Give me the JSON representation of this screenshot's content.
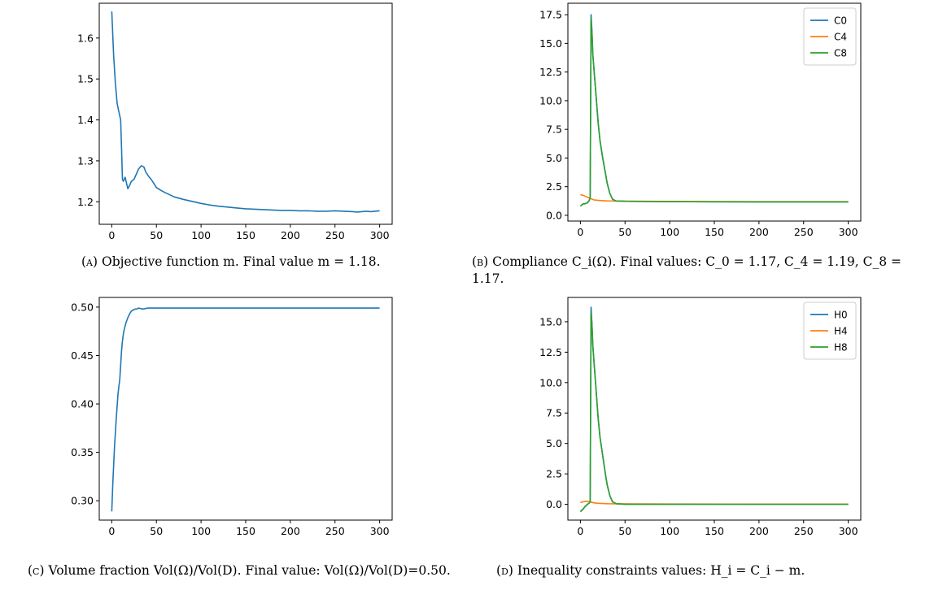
{
  "chart_data": [
    {
      "type": "line",
      "id": "a",
      "caption": {
        "tag": "(a)",
        "text": "Objective function m. Final value m = 1.18."
      },
      "xticks": [
        0,
        50,
        100,
        150,
        200,
        250,
        300
      ],
      "yticks": [
        "1.2",
        "1.3",
        "1.4",
        "1.5",
        "1.6"
      ],
      "xlim": [
        -14,
        314
      ],
      "ylim": [
        1.145,
        1.685
      ],
      "legend": null,
      "series": [
        {
          "color": "#1f77b4",
          "x": [
            0,
            2,
            4,
            6,
            8,
            10,
            11,
            12,
            13,
            15,
            18,
            20,
            22,
            25,
            28,
            30,
            33,
            36,
            38,
            41,
            44,
            47,
            50,
            55,
            60,
            65,
            70,
            80,
            90,
            100,
            110,
            120,
            130,
            140,
            150,
            160,
            170,
            180,
            190,
            200,
            210,
            220,
            230,
            240,
            250,
            260,
            270,
            275,
            280,
            285,
            290,
            295,
            300
          ],
          "y": [
            1.665,
            1.56,
            1.49,
            1.44,
            1.42,
            1.4,
            1.33,
            1.255,
            1.25,
            1.26,
            1.232,
            1.24,
            1.25,
            1.255,
            1.27,
            1.28,
            1.288,
            1.285,
            1.273,
            1.263,
            1.255,
            1.245,
            1.235,
            1.228,
            1.222,
            1.217,
            1.212,
            1.206,
            1.201,
            1.196,
            1.192,
            1.189,
            1.187,
            1.185,
            1.183,
            1.182,
            1.181,
            1.18,
            1.179,
            1.179,
            1.178,
            1.178,
            1.177,
            1.177,
            1.178,
            1.177,
            1.176,
            1.175,
            1.176,
            1.177,
            1.176,
            1.177,
            1.178
          ]
        }
      ]
    },
    {
      "type": "line",
      "id": "b",
      "caption": {
        "tag": "(b)",
        "text": "Compliance C_i(Ω). Final values: C_0 = 1.17, C_4 = 1.19, C_8 = 1.17."
      },
      "xticks": [
        0,
        50,
        100,
        150,
        200,
        250,
        300
      ],
      "yticks": [
        "0.0",
        "2.5",
        "5.0",
        "7.5",
        "10.0",
        "12.5",
        "15.0",
        "17.5"
      ],
      "xlim": [
        -14,
        314
      ],
      "ylim": [
        -0.5,
        18.5
      ],
      "legend": {
        "placement": "top-right",
        "entries": [
          "C0",
          "C4",
          "C8"
        ]
      },
      "series": [
        {
          "name": "C0",
          "color": "#1f77b4",
          "x": [
            0,
            3,
            5,
            8,
            10,
            11,
            12,
            13,
            14,
            16,
            18,
            20,
            22,
            25,
            28,
            30,
            33,
            36,
            40,
            50,
            80,
            150,
            200,
            300
          ],
          "y": [
            0.8,
            1.0,
            1.0,
            1.1,
            1.3,
            1.6,
            17.5,
            16.0,
            14.0,
            12.0,
            10.0,
            8.0,
            6.5,
            5.0,
            3.7,
            2.8,
            1.9,
            1.4,
            1.25,
            1.22,
            1.2,
            1.18,
            1.17,
            1.17
          ]
        },
        {
          "name": "C4",
          "color": "#ff7f0e",
          "x": [
            0,
            3,
            6,
            9,
            12,
            15,
            20,
            25,
            30,
            40,
            60,
            100,
            150,
            200,
            300
          ],
          "y": [
            1.8,
            1.75,
            1.65,
            1.55,
            1.45,
            1.35,
            1.3,
            1.28,
            1.26,
            1.25,
            1.23,
            1.21,
            1.2,
            1.19,
            1.19
          ]
        },
        {
          "name": "C8",
          "color": "#2ca02c",
          "x": [
            0,
            3,
            5,
            8,
            10,
            11,
            12,
            13,
            14,
            16,
            18,
            20,
            22,
            25,
            28,
            30,
            33,
            36,
            40,
            50,
            80,
            150,
            200,
            300
          ],
          "y": [
            0.8,
            1.0,
            1.0,
            1.1,
            1.3,
            1.6,
            17.2,
            16.0,
            14.0,
            12.0,
            10.0,
            8.0,
            6.5,
            5.0,
            3.7,
            2.8,
            1.9,
            1.4,
            1.25,
            1.22,
            1.2,
            1.18,
            1.17,
            1.17
          ]
        }
      ]
    },
    {
      "type": "line",
      "id": "c",
      "caption": {
        "tag": "(c)",
        "text": "Volume fraction Vol(Ω)/Vol(D). Final value: Vol(Ω)/Vol(D)=0.50."
      },
      "xticks": [
        0,
        50,
        100,
        150,
        200,
        250,
        300
      ],
      "yticks": [
        "0.30",
        "0.35",
        "0.40",
        "0.45",
        "0.50"
      ],
      "xlim": [
        -14,
        314
      ],
      "ylim": [
        0.28,
        0.51
      ],
      "legend": null,
      "series": [
        {
          "color": "#1f77b4",
          "x": [
            0,
            1,
            2,
            3,
            4,
            5,
            6,
            7,
            8,
            9,
            10,
            11,
            12,
            13,
            14,
            16,
            18,
            20,
            22,
            24,
            26,
            28,
            30,
            35,
            40,
            50,
            60,
            80,
            100,
            150,
            200,
            250,
            300
          ],
          "y": [
            0.289,
            0.315,
            0.335,
            0.355,
            0.37,
            0.385,
            0.398,
            0.41,
            0.418,
            0.425,
            0.44,
            0.455,
            0.465,
            0.472,
            0.477,
            0.484,
            0.489,
            0.493,
            0.496,
            0.497,
            0.498,
            0.498,
            0.499,
            0.498,
            0.499,
            0.499,
            0.499,
            0.499,
            0.499,
            0.499,
            0.499,
            0.499,
            0.499
          ]
        }
      ]
    },
    {
      "type": "line",
      "id": "d",
      "caption": {
        "tag": "(d)",
        "text": "Inequality constraints values: H_i = C_i − m."
      },
      "xticks": [
        0,
        50,
        100,
        150,
        200,
        250,
        300
      ],
      "yticks": [
        "0.0",
        "2.5",
        "5.0",
        "7.5",
        "10.0",
        "12.5",
        "15.0"
      ],
      "xlim": [
        -14,
        314
      ],
      "ylim": [
        -1.3,
        17.0
      ],
      "legend": {
        "placement": "top-right",
        "entries": [
          "H0",
          "H4",
          "H8"
        ]
      },
      "series": [
        {
          "name": "H0",
          "color": "#1f77b4",
          "x": [
            0,
            3,
            5,
            8,
            10,
            11,
            12,
            13,
            14,
            16,
            18,
            20,
            22,
            25,
            28,
            30,
            33,
            36,
            40,
            50,
            100,
            200,
            300
          ],
          "y": [
            -0.6,
            -0.4,
            -0.2,
            0.0,
            0.1,
            0.2,
            16.2,
            14.8,
            13.0,
            11.0,
            9.0,
            7.0,
            5.5,
            4.0,
            2.5,
            1.6,
            0.7,
            0.2,
            0.05,
            0.0,
            0.0,
            0.0,
            0.0
          ]
        },
        {
          "name": "H4",
          "color": "#ff7f0e",
          "x": [
            0,
            3,
            6,
            9,
            12,
            15,
            20,
            30,
            40,
            60,
            100,
            200,
            300
          ],
          "y": [
            0.15,
            0.2,
            0.25,
            0.22,
            0.18,
            0.12,
            0.08,
            0.05,
            0.04,
            0.03,
            0.02,
            0.01,
            0.01
          ]
        },
        {
          "name": "H8",
          "color": "#2ca02c",
          "x": [
            0,
            3,
            5,
            8,
            10,
            11,
            12,
            13,
            14,
            16,
            18,
            20,
            22,
            25,
            28,
            30,
            33,
            36,
            40,
            50,
            100,
            200,
            300
          ],
          "y": [
            -0.6,
            -0.4,
            -0.2,
            0.0,
            0.1,
            0.2,
            15.8,
            14.8,
            13.0,
            11.0,
            9.0,
            7.0,
            5.5,
            4.0,
            2.5,
            1.6,
            0.7,
            0.2,
            0.05,
            0.0,
            0.0,
            0.0,
            0.0
          ]
        }
      ]
    }
  ]
}
